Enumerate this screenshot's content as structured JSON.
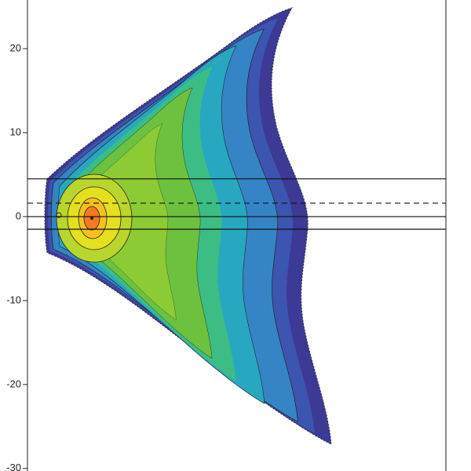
{
  "chart_data": {
    "type": "contour",
    "ylim": [
      -30.3,
      25.8
    ],
    "yticks": [
      20,
      10,
      0,
      -10,
      -20,
      -30
    ],
    "hlines": [
      {
        "value": 4.5,
        "style": "solid"
      },
      {
        "value": 1.6,
        "style": "dashed"
      },
      {
        "value": 0,
        "style": "solid"
      },
      {
        "value": -1.5,
        "style": "solid"
      }
    ]
  }
}
